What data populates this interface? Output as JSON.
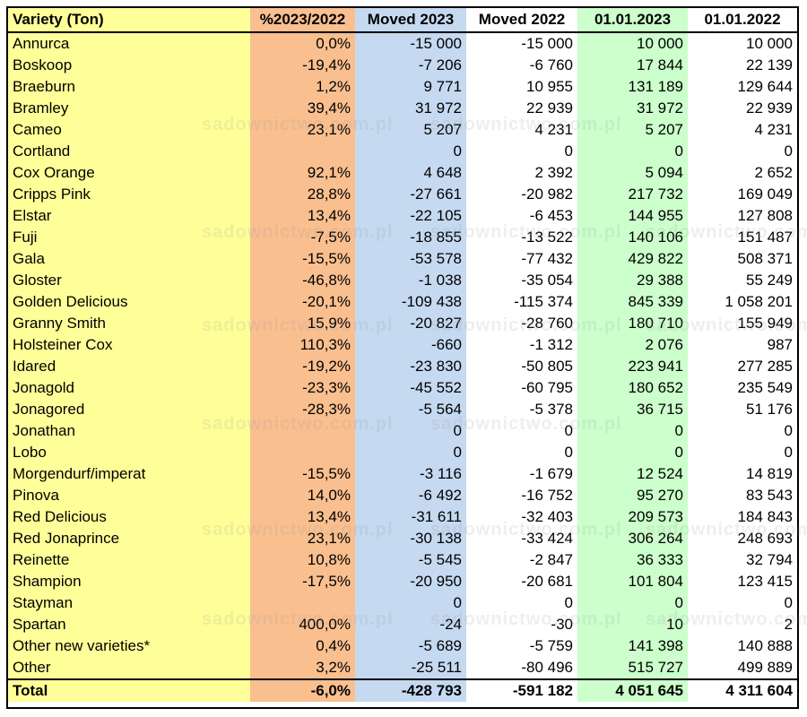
{
  "headers": [
    "Variety (Ton)",
    "%2023/2022",
    "Moved 2023",
    "Moved 2022",
    "01.01.2023",
    "01.01.2022"
  ],
  "rows": [
    [
      "Annurca",
      "0,0%",
      "-15 000",
      "-15 000",
      "10 000",
      "10 000"
    ],
    [
      "Boskoop",
      "-19,4%",
      "-7 206",
      "-6 760",
      "17 844",
      "22 139"
    ],
    [
      "Braeburn",
      "1,2%",
      "9 771",
      "10 955",
      "131 189",
      "129 644"
    ],
    [
      "Bramley",
      "39,4%",
      "31 972",
      "22 939",
      "31 972",
      "22 939"
    ],
    [
      "Cameo",
      "23,1%",
      "5 207",
      "4 231",
      "5 207",
      "4 231"
    ],
    [
      "Cortland",
      "",
      "0",
      "0",
      "0",
      "0"
    ],
    [
      "Cox Orange",
      "92,1%",
      "4 648",
      "2 392",
      "5 094",
      "2 652"
    ],
    [
      "Cripps Pink",
      "28,8%",
      "-27 661",
      "-20 982",
      "217 732",
      "169 049"
    ],
    [
      "Elstar",
      "13,4%",
      "-22 105",
      "-6 453",
      "144 955",
      "127 808"
    ],
    [
      "Fuji",
      "-7,5%",
      "-18 855",
      "-13 522",
      "140 106",
      "151 487"
    ],
    [
      "Gala",
      "-15,5%",
      "-53 578",
      "-77 432",
      "429 822",
      "508 371"
    ],
    [
      "Gloster",
      "-46,8%",
      "-1 038",
      "-35 054",
      "29 388",
      "55 249"
    ],
    [
      "Golden Delicious",
      "-20,1%",
      "-109 438",
      "-115 374",
      "845 339",
      "1 058 201"
    ],
    [
      "Granny Smith",
      "15,9%",
      "-20 827",
      "-28 760",
      "180 710",
      "155 949"
    ],
    [
      "Holsteiner Cox",
      "110,3%",
      "-660",
      "-1 312",
      "2 076",
      "987"
    ],
    [
      "Idared",
      "-19,2%",
      "-23 830",
      "-50 805",
      "223 941",
      "277 285"
    ],
    [
      "Jonagold",
      "-23,3%",
      "-45 552",
      "-60 795",
      "180 652",
      "235 549"
    ],
    [
      "Jonagored",
      "-28,3%",
      "-5 564",
      "-5 378",
      "36 715",
      "51 176"
    ],
    [
      "Jonathan",
      "",
      "0",
      "0",
      "0",
      "0"
    ],
    [
      "Lobo",
      "",
      "0",
      "0",
      "0",
      "0"
    ],
    [
      "Morgendurf/imperat",
      "-15,5%",
      "-3 116",
      "-1 679",
      "12 524",
      "14 819"
    ],
    [
      "Pinova",
      "14,0%",
      "-6 492",
      "-16 752",
      "95 270",
      "83 543"
    ],
    [
      "Red Delicious",
      "13,4%",
      "-31 611",
      "-32 403",
      "209 573",
      "184 843"
    ],
    [
      "Red Jonaprince",
      "23,1%",
      "-30 138",
      "-33 424",
      "306 264",
      "248 693"
    ],
    [
      "Reinette",
      "10,8%",
      "-5 545",
      "-2 847",
      "36 333",
      "32 794"
    ],
    [
      "Shampion",
      "-17,5%",
      "-20 950",
      "-20 681",
      "101 804",
      "123 415"
    ],
    [
      "Stayman",
      "",
      "0",
      "0",
      "0",
      "0"
    ],
    [
      "Spartan",
      "400,0%",
      "-24",
      "-30",
      "10",
      "2"
    ],
    [
      "Other new varieties*",
      "0,4%",
      "-5 689",
      "-5 759",
      "141 398",
      "140 888"
    ],
    [
      "Other",
      "3,2%",
      "-25 511",
      "-80 496",
      "515 727",
      "499 889"
    ]
  ],
  "total": [
    "Total",
    "-6,0%",
    "-428 793",
    "-591 182",
    "4 051 645",
    "4 311 604"
  ],
  "watermark": "sadownictwo.com.pl",
  "colors": {
    "variety_col": "#ffff99",
    "percent_col": "#f9bf8f",
    "moved2023_col": "#c5d9f1",
    "stock2023_col": "#ccffcc"
  }
}
